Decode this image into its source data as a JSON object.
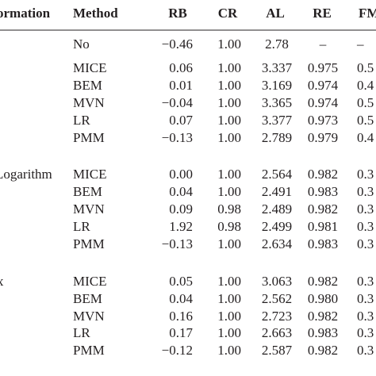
{
  "table": {
    "header": [
      "ormation",
      "Method",
      "RB",
      "CR",
      "AL",
      "RE",
      "FM"
    ],
    "groups": [
      {
        "rows": [
          [
            "No",
            "−0.46",
            "1.00",
            "2.78",
            "–",
            "–"
          ],
          [
            "MICE",
            "0.06",
            "1.00",
            "3.337",
            "0.975",
            "0.5"
          ],
          [
            "BEM",
            "0.01",
            "1.00",
            "3.169",
            "0.974",
            "0.4"
          ],
          [
            "MVN",
            "−0.04",
            "1.00",
            "3.365",
            "0.974",
            "0.5"
          ],
          [
            "LR",
            "0.07",
            "1.00",
            "3.377",
            "0.973",
            "0.5"
          ],
          [
            "PMM",
            "−0.13",
            "1.00",
            "2.789",
            "0.979",
            "0.4"
          ]
        ]
      },
      {
        "label": "Logarithm",
        "rows": [
          [
            "MICE",
            "0.00",
            "1.00",
            "2.564",
            "0.982",
            "0.3"
          ],
          [
            "BEM",
            "0.04",
            "1.00",
            "2.491",
            "0.983",
            "0.3"
          ],
          [
            "MVN",
            "0.09",
            "0.98",
            "2.489",
            "0.982",
            "0.3"
          ],
          [
            "LR",
            "1.92",
            "0.98",
            "2.499",
            "0.981",
            "0.3"
          ],
          [
            "PMM",
            "−0.13",
            "1.00",
            "2.634",
            "0.983",
            "0.3"
          ]
        ]
      },
      {
        "label": "x",
        "rows": [
          [
            "MICE",
            "0.05",
            "1.00",
            "3.063",
            "0.982",
            "0.3"
          ],
          [
            "BEM",
            "0.04",
            "1.00",
            "2.562",
            "0.980",
            "0.3"
          ],
          [
            "MVN",
            "0.16",
            "1.00",
            "2.723",
            "0.982",
            "0.3"
          ],
          [
            "LR",
            "0.17",
            "1.00",
            "2.663",
            "0.983",
            "0.3"
          ],
          [
            "PMM",
            "−0.12",
            "1.00",
            "2.587",
            "0.982",
            "0.3"
          ]
        ]
      }
    ]
  }
}
